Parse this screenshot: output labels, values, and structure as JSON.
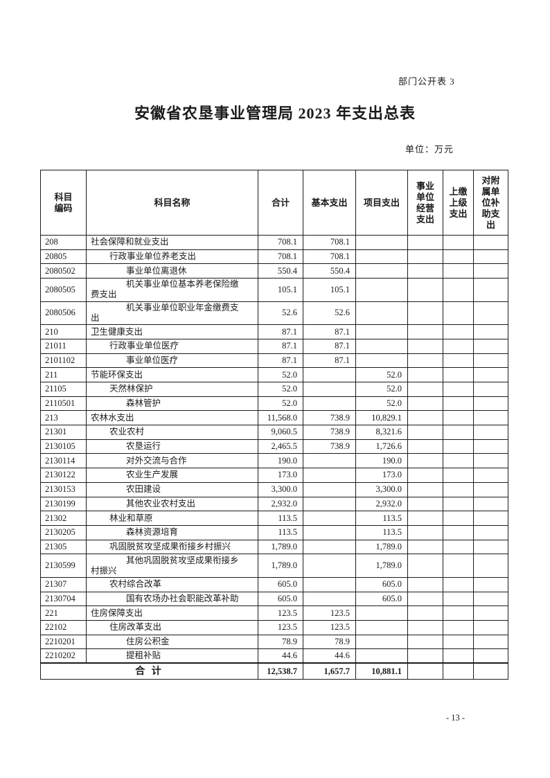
{
  "colors": {
    "ink": "#1a1a1a",
    "background": "#ffffff"
  },
  "page": {
    "doc_label": "部门公开表 3",
    "title": "安徽省农垦事业管理局 2023 年支出总表",
    "unit_label": "单位：万元",
    "page_number": "- 13 -"
  },
  "table": {
    "headers": [
      "科目\n编码",
      "科目名称",
      "合计",
      "基本支出",
      "项目支出",
      "事业\n单位\n经营\n支出",
      "上缴\n上级\n支出",
      "对附\n属单\n位补\n助支\n出"
    ],
    "rows": [
      {
        "code": "208",
        "name": "社会保障和就业支出",
        "indent": 1,
        "wrap": false,
        "values": [
          "708.1",
          "708.1",
          "",
          "",
          "",
          ""
        ]
      },
      {
        "code": "20805",
        "name": "行政事业单位养老支出",
        "indent": 2,
        "wrap": false,
        "values": [
          "708.1",
          "708.1",
          "",
          "",
          "",
          ""
        ]
      },
      {
        "code": "2080502",
        "name": "事业单位离退休",
        "indent": 3,
        "wrap": false,
        "values": [
          "550.4",
          "550.4",
          "",
          "",
          "",
          ""
        ]
      },
      {
        "code": "2080505",
        "name": "机关事业单位基本养老保险缴\n费支出",
        "indent": 3,
        "wrap": true,
        "values": [
          "105.1",
          "105.1",
          "",
          "",
          "",
          ""
        ]
      },
      {
        "code": "2080506",
        "name": "机关事业单位职业年金缴费支\n出",
        "indent": 3,
        "wrap": true,
        "values": [
          "52.6",
          "52.6",
          "",
          "",
          "",
          ""
        ]
      },
      {
        "code": "210",
        "name": "卫生健康支出",
        "indent": 1,
        "wrap": false,
        "values": [
          "87.1",
          "87.1",
          "",
          "",
          "",
          ""
        ]
      },
      {
        "code": "21011",
        "name": "行政事业单位医疗",
        "indent": 2,
        "wrap": false,
        "values": [
          "87.1",
          "87.1",
          "",
          "",
          "",
          ""
        ]
      },
      {
        "code": "2101102",
        "name": "事业单位医疗",
        "indent": 3,
        "wrap": false,
        "values": [
          "87.1",
          "87.1",
          "",
          "",
          "",
          ""
        ]
      },
      {
        "code": "211",
        "name": "节能环保支出",
        "indent": 1,
        "wrap": false,
        "values": [
          "52.0",
          "",
          "52.0",
          "",
          "",
          ""
        ]
      },
      {
        "code": "21105",
        "name": "天然林保护",
        "indent": 2,
        "wrap": false,
        "values": [
          "52.0",
          "",
          "52.0",
          "",
          "",
          ""
        ]
      },
      {
        "code": "2110501",
        "name": "森林管护",
        "indent": 3,
        "wrap": false,
        "values": [
          "52.0",
          "",
          "52.0",
          "",
          "",
          ""
        ]
      },
      {
        "code": "213",
        "name": "农林水支出",
        "indent": 1,
        "wrap": false,
        "values": [
          "11,568.0",
          "738.9",
          "10,829.1",
          "",
          "",
          ""
        ]
      },
      {
        "code": "21301",
        "name": "农业农村",
        "indent": 2,
        "wrap": false,
        "values": [
          "9,060.5",
          "738.9",
          "8,321.6",
          "",
          "",
          ""
        ]
      },
      {
        "code": "2130105",
        "name": "农垦运行",
        "indent": 3,
        "wrap": false,
        "values": [
          "2,465.5",
          "738.9",
          "1,726.6",
          "",
          "",
          ""
        ]
      },
      {
        "code": "2130114",
        "name": "对外交流与合作",
        "indent": 3,
        "wrap": false,
        "values": [
          "190.0",
          "",
          "190.0",
          "",
          "",
          ""
        ]
      },
      {
        "code": "2130122",
        "name": "农业生产发展",
        "indent": 3,
        "wrap": false,
        "values": [
          "173.0",
          "",
          "173.0",
          "",
          "",
          ""
        ]
      },
      {
        "code": "2130153",
        "name": "农田建设",
        "indent": 3,
        "wrap": false,
        "values": [
          "3,300.0",
          "",
          "3,300.0",
          "",
          "",
          ""
        ]
      },
      {
        "code": "2130199",
        "name": "其他农业农村支出",
        "indent": 3,
        "wrap": false,
        "values": [
          "2,932.0",
          "",
          "2,932.0",
          "",
          "",
          ""
        ]
      },
      {
        "code": "21302",
        "name": "林业和草原",
        "indent": 2,
        "wrap": false,
        "values": [
          "113.5",
          "",
          "113.5",
          "",
          "",
          ""
        ]
      },
      {
        "code": "2130205",
        "name": "森林资源培育",
        "indent": 3,
        "wrap": false,
        "values": [
          "113.5",
          "",
          "113.5",
          "",
          "",
          ""
        ]
      },
      {
        "code": "21305",
        "name": "巩固脱贫攻坚成果衔接乡村振兴",
        "indent": 2,
        "wrap": false,
        "values": [
          "1,789.0",
          "",
          "1,789.0",
          "",
          "",
          ""
        ]
      },
      {
        "code": "2130599",
        "name": "其他巩固脱贫攻坚成果衔接乡\n村振兴",
        "indent": 3,
        "wrap": true,
        "values": [
          "1,789.0",
          "",
          "1,789.0",
          "",
          "",
          ""
        ]
      },
      {
        "code": "21307",
        "name": "农村综合改革",
        "indent": 2,
        "wrap": false,
        "values": [
          "605.0",
          "",
          "605.0",
          "",
          "",
          ""
        ]
      },
      {
        "code": "2130704",
        "name": "国有农场办社会职能改革补助",
        "indent": 3,
        "wrap": false,
        "values": [
          "605.0",
          "",
          "605.0",
          "",
          "",
          ""
        ]
      },
      {
        "code": "221",
        "name": "住房保障支出",
        "indent": 1,
        "wrap": false,
        "values": [
          "123.5",
          "123.5",
          "",
          "",
          "",
          ""
        ]
      },
      {
        "code": "22102",
        "name": "住房改革支出",
        "indent": 2,
        "wrap": false,
        "values": [
          "123.5",
          "123.5",
          "",
          "",
          "",
          ""
        ]
      },
      {
        "code": "2210201",
        "name": "住房公积金",
        "indent": 3,
        "wrap": false,
        "values": [
          "78.9",
          "78.9",
          "",
          "",
          "",
          ""
        ]
      },
      {
        "code": "2210202",
        "name": "提租补贴",
        "indent": 3,
        "wrap": false,
        "values": [
          "44.6",
          "44.6",
          "",
          "",
          "",
          ""
        ]
      }
    ],
    "total_row": {
      "label": "合 计",
      "values": [
        "12,538.7",
        "1,657.7",
        "10,881.1",
        "",
        "",
        ""
      ]
    }
  }
}
